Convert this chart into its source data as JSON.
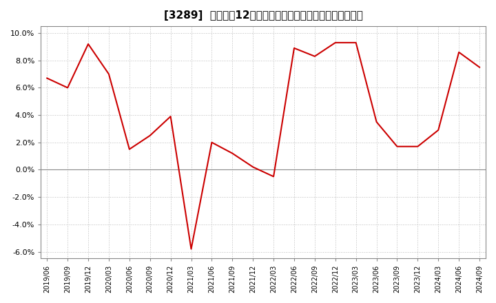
{
  "title": "[3289]  売上高の12か月移動合計の対前年同期増減率の推移",
  "x_labels": [
    "2019/06",
    "2019/09",
    "2019/12",
    "2020/03",
    "2020/06",
    "2020/09",
    "2020/12",
    "2021/03",
    "2021/06",
    "2021/09",
    "2021/12",
    "2022/03",
    "2022/06",
    "2022/09",
    "2022/12",
    "2023/03",
    "2023/06",
    "2023/09",
    "2023/12",
    "2024/03",
    "2024/06",
    "2024/09"
  ],
  "y_values": [
    6.7,
    6.0,
    9.2,
    7.0,
    1.5,
    2.5,
    3.9,
    -5.8,
    2.0,
    1.2,
    0.2,
    -0.5,
    8.9,
    8.3,
    9.3,
    9.3,
    3.5,
    1.7,
    1.7,
    2.9,
    8.6,
    7.5
  ],
  "line_color": "#cc0000",
  "background_color": "#ffffff",
  "grid_color": "#bbbbbb",
  "ylim": [
    -6.5,
    10.5
  ],
  "yticks": [
    -6.0,
    -4.0,
    -2.0,
    0.0,
    2.0,
    4.0,
    6.0,
    8.0,
    10.0
  ],
  "title_fontsize": 11
}
